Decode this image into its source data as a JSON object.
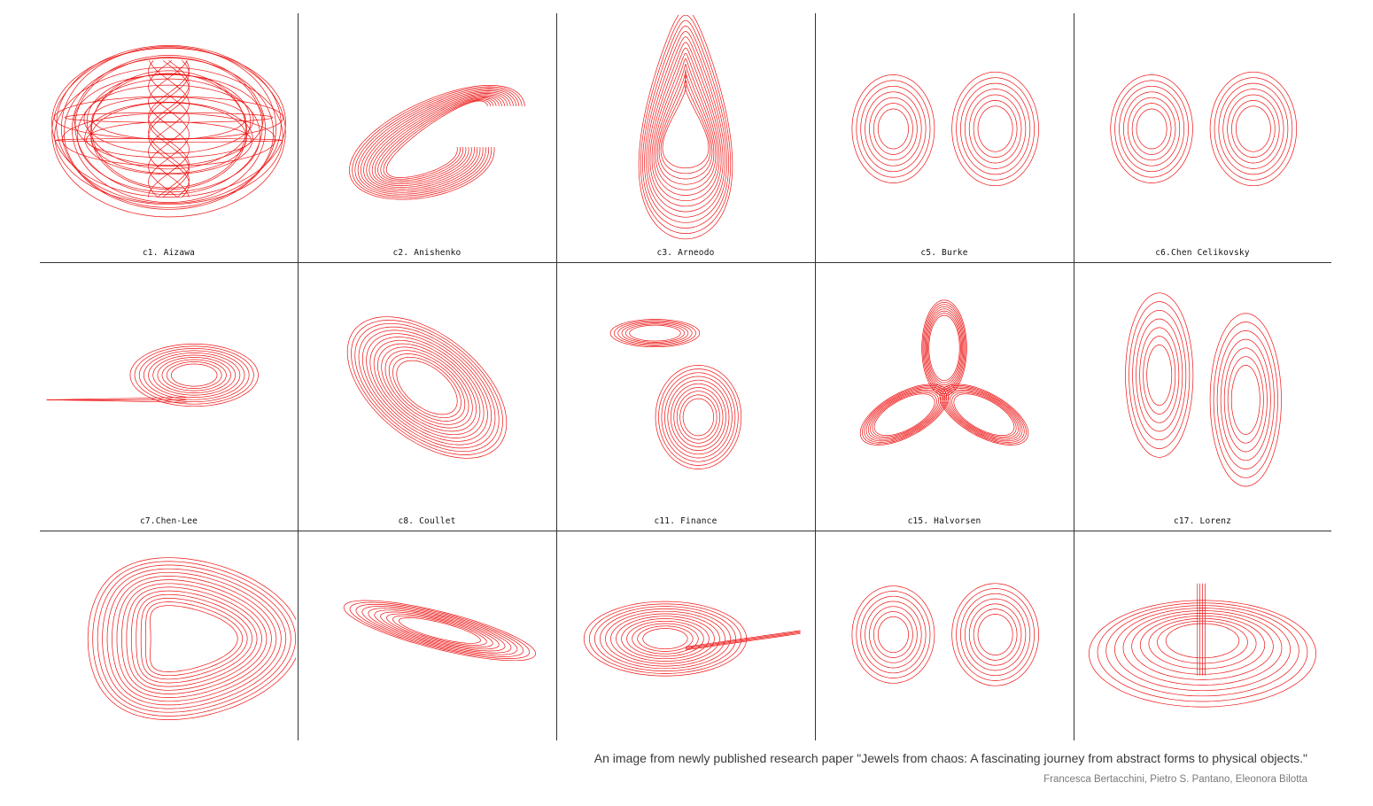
{
  "panels": [
    {
      "label": "c1. Aizawa",
      "shape": "sphere"
    },
    {
      "label": "c2. Anishenko",
      "shape": "wing"
    },
    {
      "label": "c3. Arneodo",
      "shape": "vertical"
    },
    {
      "label": "c5. Burke",
      "shape": "butterfly-wide"
    },
    {
      "label": "c6.Chen Celikovsky",
      "shape": "butterfly"
    },
    {
      "label": "c7.Chen-Lee",
      "shape": "chenlee"
    },
    {
      "label": "c8. Coullet",
      "shape": "tilted"
    },
    {
      "label": "c11. Finance",
      "shape": "finance"
    },
    {
      "label": "c15. Halvorsen",
      "shape": "halvorsen"
    },
    {
      "label": "c17. Lorenz",
      "shape": "lorenz"
    },
    {
      "label": "",
      "shape": "rossler"
    },
    {
      "label": "",
      "shape": "thin-wing"
    },
    {
      "label": "",
      "shape": "swirl"
    },
    {
      "label": "",
      "shape": "double-loop"
    },
    {
      "label": "",
      "shape": "bowl"
    }
  ],
  "caption": {
    "text": "An image from newly published research paper \"Jewels from chaos: A fascinating journey from abstract forms to physical objects.\"",
    "authors": "Francesca Bertacchini, Pietro S. Pantano, Eleonora Bilotta"
  },
  "colors": {
    "stroke": "#ee1111",
    "rule": "#333333",
    "background": "#ffffff"
  }
}
